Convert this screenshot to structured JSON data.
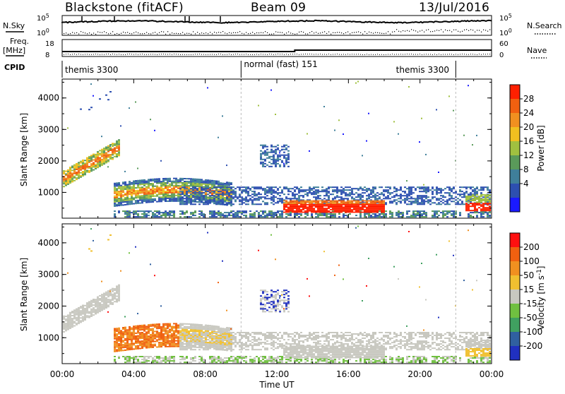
{
  "header": {
    "station_scan": "Blackstone (fitACF)",
    "beam": "Beam 09",
    "date": "13/Jul/2016"
  },
  "top_panels": {
    "nsky_label": "N.Sky",
    "nsearch_label": "N.Search",
    "nsky_ticks": [
      "10^5",
      "10^0"
    ],
    "nsearch_ticks": [
      "10^5",
      "10^0"
    ],
    "freq_label": "Freq.",
    "freq_unit": "[MHz]",
    "freq_ticks": [
      "18",
      "8"
    ],
    "nave_label": "Nave",
    "nave_ticks": [
      "60",
      "0"
    ],
    "cpid_label": "CPID",
    "cpid_segments": [
      {
        "name": "themis 3300",
        "start": 0.0,
        "end": 10.0
      },
      {
        "name": "normal (fast) 151",
        "start": 10.0,
        "end": 22.0
      },
      {
        "name": "themis 3300",
        "start": 22.0,
        "end": 24.0
      }
    ],
    "cpid_label_positions": [
      0.0,
      10.0,
      18.5
    ]
  },
  "chart_data": [
    {
      "type": "heatmap",
      "panel": "power",
      "xlabel": "",
      "ylabel": "Slant Range [km]",
      "x_range_hours": [
        0,
        24
      ],
      "ylim": [
        180,
        4600
      ],
      "yticks": [
        1000,
        2000,
        3000,
        4000
      ],
      "colorbar_label": "Power [dB]",
      "colorbar_ticks": [
        "4",
        "8",
        "12",
        "16",
        "20",
        "24",
        "28"
      ],
      "colorbar_colors": [
        "#1a1aff",
        "#2d4fb0",
        "#3f7f9a",
        "#5a9a5a",
        "#a0c040",
        "#f0c020",
        "#f09020",
        "#f06010",
        "#ff2000"
      ]
    },
    {
      "type": "heatmap",
      "panel": "velocity",
      "xlabel": "Time UT",
      "ylabel": "Slant Range [km]",
      "x_range_hours": [
        0,
        24
      ],
      "ylim": [
        180,
        4600
      ],
      "yticks": [
        1000,
        2000,
        3000,
        4000
      ],
      "xticks": [
        "00:00",
        "04:00",
        "08:00",
        "12:00",
        "16:00",
        "20:00",
        "00:00"
      ],
      "colorbar_label": "Velocity [m s^-1]",
      "colorbar_ticks": [
        "200",
        "100",
        "50",
        "15",
        "-15",
        "-50",
        "-100",
        "-200"
      ],
      "colorbar_colors": [
        "#2030c0",
        "#3060a0",
        "#40a060",
        "#70c040",
        "#c8c8c0",
        "#f0c030",
        "#f09020",
        "#f06010",
        "#ff1010"
      ]
    }
  ]
}
